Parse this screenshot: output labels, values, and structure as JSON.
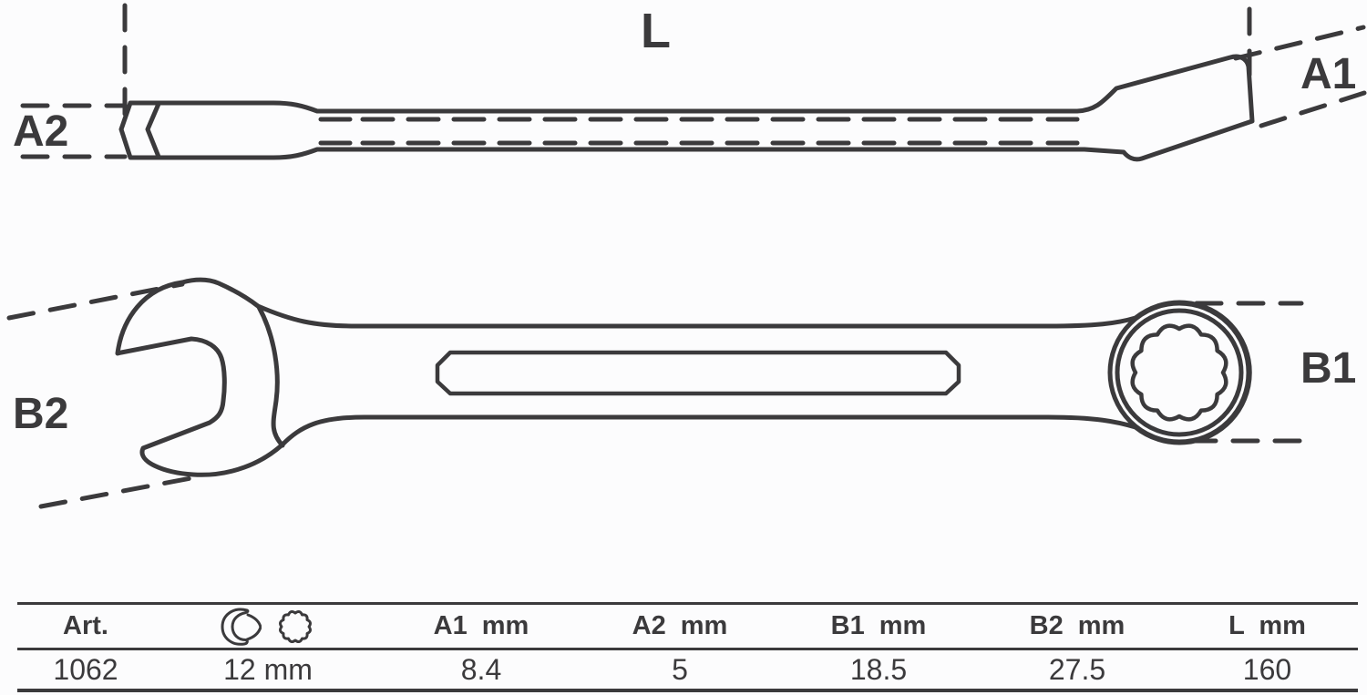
{
  "drawing": {
    "labels": {
      "length": "L",
      "a1": "A1",
      "a2": "A2",
      "b1": "B1",
      "b2": "B2"
    }
  },
  "table": {
    "headers": {
      "art": "Art.",
      "a1": "A1 mm",
      "a2": "A2 mm",
      "b1": "B1 mm",
      "b2": "B2 mm",
      "l": "L mm"
    },
    "icons": {
      "open_end": "open-end-wrench-icon",
      "ring": "ring-12pt-icon"
    },
    "row": {
      "art": "1062",
      "size": "12 mm",
      "a1": "8.4",
      "a2": "5",
      "b1": "18.5",
      "b2": "27.5",
      "l": "160"
    }
  },
  "colors": {
    "line": "#3b3a3c",
    "background": "#fcfcfd"
  }
}
